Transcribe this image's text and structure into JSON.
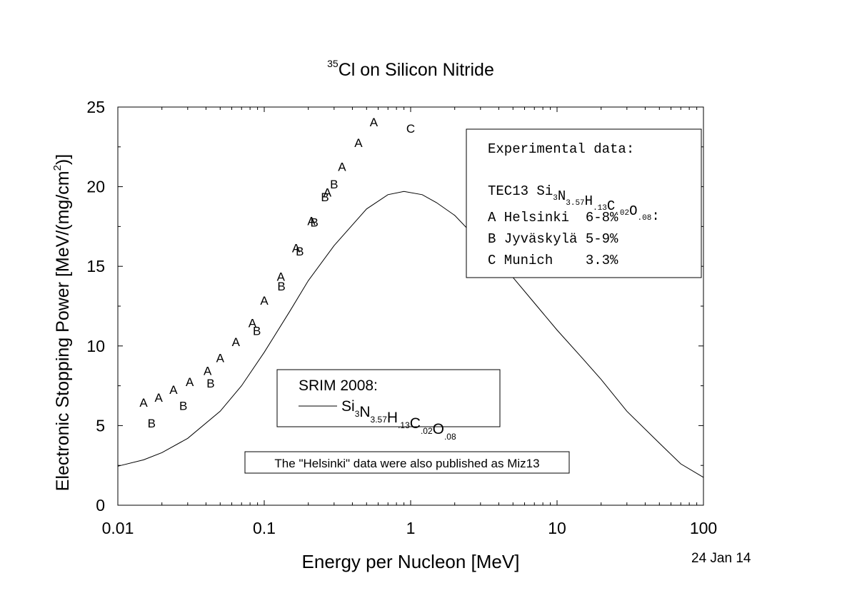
{
  "chart_data": {
    "type": "scatter",
    "title": {
      "sup": "35",
      "text": "Cl on Silicon Nitride"
    },
    "xlabel": "Energy per Nucleon [MeV]",
    "ylabel": {
      "main": "Electronic Stopping Power [MeV/(mg/cm",
      "sup": "2",
      "tail": ")]"
    },
    "x_scale": "log",
    "xlim": [
      0.01,
      100
    ],
    "ylim": [
      0,
      25
    ],
    "x_ticks": [
      {
        "value": 0.01,
        "label": "0.01"
      },
      {
        "value": 0.1,
        "label": "0.1"
      },
      {
        "value": 1,
        "label": "1"
      },
      {
        "value": 10,
        "label": "10"
      },
      {
        "value": 100,
        "label": "100"
      }
    ],
    "y_ticks": [
      {
        "value": 0,
        "label": "0"
      },
      {
        "value": 5,
        "label": "5"
      },
      {
        "value": 10,
        "label": "10"
      },
      {
        "value": 15,
        "label": "15"
      },
      {
        "value": 20,
        "label": "20"
      },
      {
        "value": 25,
        "label": "25"
      }
    ],
    "series": [
      {
        "marker": "A",
        "points": [
          [
            0.015,
            6.5
          ],
          [
            0.019,
            6.8
          ],
          [
            0.024,
            7.3
          ],
          [
            0.031,
            7.8
          ],
          [
            0.041,
            8.5
          ],
          [
            0.05,
            9.3
          ],
          [
            0.064,
            10.3
          ],
          [
            0.083,
            11.5
          ],
          [
            0.1,
            12.9
          ],
          [
            0.13,
            14.4
          ],
          [
            0.165,
            16.2
          ],
          [
            0.21,
            17.9
          ],
          [
            0.27,
            19.7
          ],
          [
            0.34,
            21.3
          ],
          [
            0.44,
            22.8
          ],
          [
            0.56,
            24.1
          ]
        ]
      },
      {
        "marker": "B",
        "points": [
          [
            0.017,
            5.2
          ],
          [
            0.028,
            6.3
          ],
          [
            0.043,
            7.7
          ],
          [
            0.089,
            11.0
          ],
          [
            0.131,
            13.8
          ],
          [
            0.175,
            16.0
          ],
          [
            0.22,
            17.8
          ],
          [
            0.26,
            19.4
          ],
          [
            0.3,
            20.2
          ]
        ]
      },
      {
        "marker": "C",
        "points": [
          [
            1.0,
            23.7
          ]
        ]
      },
      {
        "name": "SRIM 2008",
        "type": "line",
        "points": [
          [
            0.01,
            2.45
          ],
          [
            0.015,
            2.85
          ],
          [
            0.02,
            3.3
          ],
          [
            0.03,
            4.2
          ],
          [
            0.05,
            5.9
          ],
          [
            0.07,
            7.5
          ],
          [
            0.1,
            9.6
          ],
          [
            0.15,
            12.2
          ],
          [
            0.2,
            14.1
          ],
          [
            0.3,
            16.3
          ],
          [
            0.5,
            18.6
          ],
          [
            0.7,
            19.5
          ],
          [
            0.9,
            19.7
          ],
          [
            1.2,
            19.5
          ],
          [
            1.5,
            19.0
          ],
          [
            2,
            18.2
          ],
          [
            3,
            16.5
          ],
          [
            5,
            14.3
          ],
          [
            7,
            12.7
          ],
          [
            10,
            11.0
          ],
          [
            15,
            9.2
          ],
          [
            20,
            7.9
          ],
          [
            30,
            5.9
          ],
          [
            50,
            3.9
          ],
          [
            70,
            2.6
          ],
          [
            100,
            1.75
          ]
        ]
      }
    ],
    "legend_experimental": {
      "heading": "Experimental data:",
      "formula_prefix": "TEC13 ",
      "formula": [
        {
          "el": "Si",
          "sub": "3"
        },
        {
          "el": "N",
          "sub": "3.57"
        },
        {
          "el": "H",
          "sub": ".13"
        },
        {
          "el": "C",
          "sub": ".02"
        },
        {
          "el": "O",
          "sub": ".08"
        }
      ],
      "formula_suffix": ":",
      "entries": [
        "A Helsinki  6-8%",
        "B Jyväskylä 5-9%",
        "C Munich    3.3%"
      ]
    },
    "legend_srim": {
      "heading": "SRIM 2008:",
      "formula": [
        {
          "el": "Si",
          "sub": "3"
        },
        {
          "el": "N",
          "sub": "3.57"
        },
        {
          "el": "H",
          "sub": ".13"
        },
        {
          "el": "C",
          "sub": ".02"
        },
        {
          "el": "O",
          "sub": ".08"
        }
      ]
    },
    "note": "The \"Helsinki\" data were also published as Miz13",
    "date": "24 Jan 14"
  }
}
